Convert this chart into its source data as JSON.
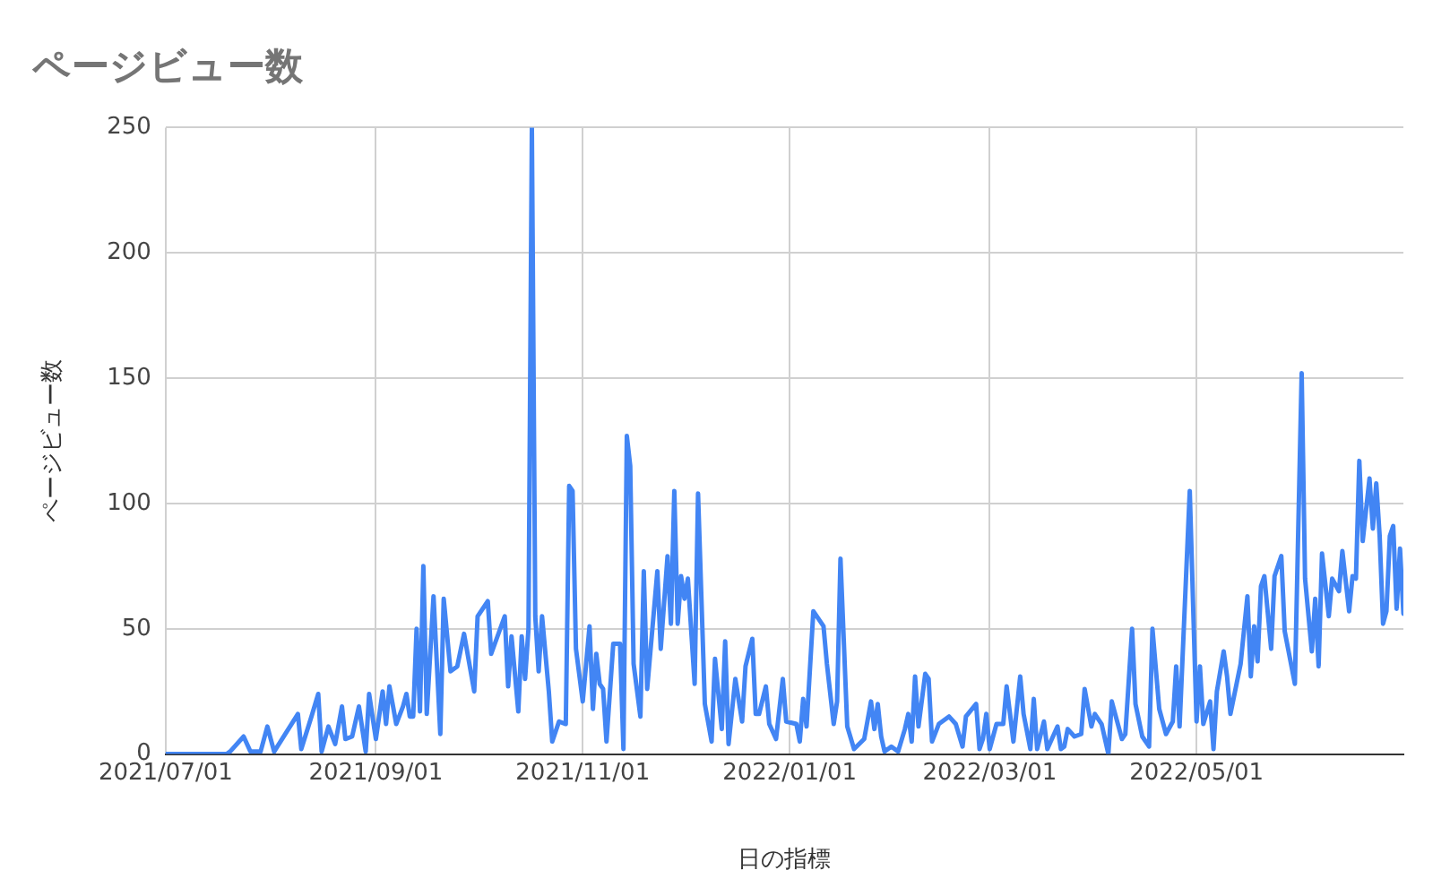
{
  "chart_data": {
    "type": "line",
    "title": "ページビュー数",
    "xlabel": "日の指標",
    "ylabel": "ページビュー数",
    "grid": true,
    "legend": false,
    "marker": "none",
    "line_style": "solid",
    "xlim": [
      "2021-07-01",
      "2022-07-01"
    ],
    "xticks": [
      {
        "value": "2021-07-01",
        "label": "2021/07/01"
      },
      {
        "value": "2021-09-01",
        "label": "2021/09/01"
      },
      {
        "value": "2021-11-01",
        "label": "2021/11/01"
      },
      {
        "value": "2022-01-01",
        "label": "2022/01/01"
      },
      {
        "value": "2022-03-01",
        "label": "2022/03/01"
      },
      {
        "value": "2022-05-01",
        "label": "2022/05/01"
      }
    ],
    "ylim": [
      0,
      250
    ],
    "yticks": [
      0,
      50,
      100,
      150,
      200,
      250
    ],
    "x": [
      "2021-07-01",
      "2021-07-19",
      "2021-07-20",
      "2021-07-24",
      "2021-07-26",
      "2021-07-29",
      "2021-07-31",
      "2021-08-02",
      "2021-08-09",
      "2021-08-10",
      "2021-08-13",
      "2021-08-15",
      "2021-08-16",
      "2021-08-18",
      "2021-08-20",
      "2021-08-22",
      "2021-08-23",
      "2021-08-25",
      "2021-08-27",
      "2021-08-29",
      "2021-08-30",
      "2021-09-01",
      "2021-09-03",
      "2021-09-04",
      "2021-09-05",
      "2021-09-07",
      "2021-09-09",
      "2021-09-10",
      "2021-09-11",
      "2021-09-12",
      "2021-09-13",
      "2021-09-14",
      "2021-09-15",
      "2021-09-16",
      "2021-09-18",
      "2021-09-20",
      "2021-09-21",
      "2021-09-23",
      "2021-09-25",
      "2021-09-27",
      "2021-09-30",
      "2021-10-01",
      "2021-10-04",
      "2021-10-05",
      "2021-10-09",
      "2021-10-10",
      "2021-10-11",
      "2021-10-13",
      "2021-10-14",
      "2021-10-15",
      "2021-10-16",
      "2021-10-17",
      "2021-10-18",
      "2021-10-19",
      "2021-10-20",
      "2021-10-22",
      "2021-10-23",
      "2021-10-25",
      "2021-10-27",
      "2021-10-28",
      "2021-10-29",
      "2021-10-30",
      "2021-11-01",
      "2021-11-03",
      "2021-11-04",
      "2021-11-05",
      "2021-11-06",
      "2021-11-07",
      "2021-11-08",
      "2021-11-10",
      "2021-11-12",
      "2021-11-13",
      "2021-11-14",
      "2021-11-15",
      "2021-11-16",
      "2021-11-18",
      "2021-11-19",
      "2021-11-20",
      "2021-11-23",
      "2021-11-24",
      "2021-11-26",
      "2021-11-27",
      "2021-11-28",
      "2021-11-29",
      "2021-11-30",
      "2021-12-01",
      "2021-12-02",
      "2021-12-04",
      "2021-12-05",
      "2021-12-07",
      "2021-12-09",
      "2021-12-10",
      "2021-12-12",
      "2021-12-13",
      "2021-12-14",
      "2021-12-16",
      "2021-12-18",
      "2021-12-19",
      "2021-12-21",
      "2021-12-22",
      "2021-12-23",
      "2021-12-25",
      "2021-12-26",
      "2021-12-28",
      "2021-12-30",
      "2021-12-31",
      "2022-01-03",
      "2022-01-04",
      "2022-01-05",
      "2022-01-06",
      "2022-01-08",
      "2022-01-11",
      "2022-01-12",
      "2022-01-14",
      "2022-01-15",
      "2022-01-16",
      "2022-01-18",
      "2022-01-20",
      "2022-01-23",
      "2022-01-25",
      "2022-01-26",
      "2022-01-27",
      "2022-01-28",
      "2022-01-29",
      "2022-01-31",
      "2022-02-02",
      "2022-02-04",
      "2022-02-05",
      "2022-02-06",
      "2022-02-07",
      "2022-02-08",
      "2022-02-10",
      "2022-02-11",
      "2022-02-12",
      "2022-02-14",
      "2022-02-17",
      "2022-02-19",
      "2022-02-21",
      "2022-02-22",
      "2022-02-25",
      "2022-02-26",
      "2022-02-27",
      "2022-02-28",
      "2022-03-01",
      "2022-03-03",
      "2022-03-05",
      "2022-03-06",
      "2022-03-08",
      "2022-03-10",
      "2022-03-11",
      "2022-03-13",
      "2022-03-14",
      "2022-03-15",
      "2022-03-17",
      "2022-03-18",
      "2022-03-21",
      "2022-03-22",
      "2022-03-23",
      "2022-03-24",
      "2022-03-26",
      "2022-03-28",
      "2022-03-29",
      "2022-03-31",
      "2022-04-01",
      "2022-04-03",
      "2022-04-05",
      "2022-04-06",
      "2022-04-09",
      "2022-04-10",
      "2022-04-12",
      "2022-04-13",
      "2022-04-15",
      "2022-04-17",
      "2022-04-18",
      "2022-04-20",
      "2022-04-22",
      "2022-04-24",
      "2022-04-25",
      "2022-04-26",
      "2022-04-29",
      "2022-05-01",
      "2022-05-02",
      "2022-05-03",
      "2022-05-05",
      "2022-05-06",
      "2022-05-07",
      "2022-05-09",
      "2022-05-10",
      "2022-05-11",
      "2022-05-14",
      "2022-05-16",
      "2022-05-17",
      "2022-05-18",
      "2022-05-19",
      "2022-05-20",
      "2022-05-21",
      "2022-05-23",
      "2022-05-24",
      "2022-05-26",
      "2022-05-27",
      "2022-05-28",
      "2022-05-30",
      "2022-06-01",
      "2022-06-02",
      "2022-06-04",
      "2022-06-05",
      "2022-06-06",
      "2022-06-07",
      "2022-06-09",
      "2022-06-10",
      "2022-06-12",
      "2022-06-13",
      "2022-06-15",
      "2022-06-16",
      "2022-06-17",
      "2022-06-18",
      "2022-06-19",
      "2022-06-21",
      "2022-06-22",
      "2022-06-23",
      "2022-06-24",
      "2022-06-25",
      "2022-06-26",
      "2022-06-27",
      "2022-06-28",
      "2022-06-29",
      "2022-06-30",
      "2022-07-01"
    ],
    "series": [
      {
        "color": "#4285f4",
        "values": [
          0,
          0,
          1,
          7,
          1,
          1,
          11,
          1,
          16,
          2,
          15,
          24,
          1,
          11,
          4,
          19,
          6,
          7,
          19,
          1,
          24,
          6,
          25,
          12,
          27,
          12,
          19,
          24,
          15,
          15,
          50,
          17,
          75,
          16,
          63,
          8,
          62,
          33,
          35,
          48,
          25,
          55,
          61,
          40,
          55,
          27,
          47,
          17,
          47,
          30,
          50,
          250,
          55,
          33,
          55,
          25,
          5,
          13,
          12,
          107,
          105,
          42,
          21,
          51,
          18,
          40,
          28,
          26,
          5,
          44,
          44,
          2,
          127,
          115,
          36,
          15,
          73,
          26,
          73,
          42,
          79,
          52,
          105,
          52,
          71,
          62,
          70,
          28,
          104,
          20,
          5,
          38,
          10,
          45,
          4,
          30,
          13,
          35,
          46,
          16,
          16,
          27,
          12,
          6,
          30,
          13,
          12,
          5,
          22,
          11,
          57,
          51,
          36,
          12,
          21,
          78,
          11,
          2,
          6,
          21,
          10,
          20,
          7,
          1,
          3,
          1,
          10,
          16,
          5,
          31,
          11,
          32,
          30,
          5,
          12,
          15,
          12,
          3,
          15,
          20,
          2,
          6,
          16,
          2,
          12,
          12,
          27,
          5,
          31,
          16,
          2,
          22,
          2,
          13,
          2,
          11,
          2,
          3,
          10,
          7,
          8,
          26,
          11,
          16,
          12,
          0,
          21,
          6,
          8,
          50,
          20,
          7,
          3,
          50,
          18,
          8,
          13,
          35,
          11,
          105,
          13,
          35,
          12,
          21,
          2,
          25,
          41,
          31,
          16,
          36,
          63,
          31,
          51,
          37,
          67,
          71,
          42,
          71,
          79,
          49,
          42,
          28,
          152,
          70,
          41,
          62,
          35,
          80,
          55,
          70,
          65,
          81,
          57,
          71,
          70,
          117,
          85,
          110,
          90,
          108,
          87,
          52,
          57,
          87,
          91,
          58,
          82,
          56
        ]
      }
    ]
  }
}
